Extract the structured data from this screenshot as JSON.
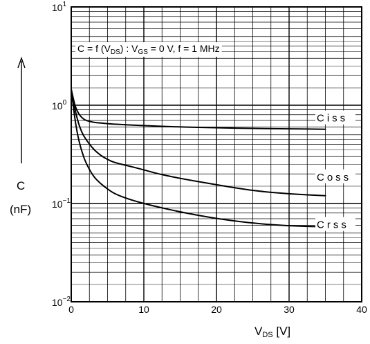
{
  "chart_data": {
    "type": "line",
    "title": "",
    "annotation": "C = f (V_DS) : V_GS = 0 V,  f = 1 MHz",
    "xlabel": "V_DS [V]",
    "ylabel": "C",
    "ylabel_unit": "(nF)",
    "x_scale": "linear",
    "y_scale": "log",
    "xlim": [
      0,
      40
    ],
    "ylim": [
      0.01,
      10
    ],
    "grid": true,
    "x_ticks": [
      {
        "value": 0,
        "label": "0"
      },
      {
        "value": 10,
        "label": "10"
      },
      {
        "value": 20,
        "label": "20"
      },
      {
        "value": 30,
        "label": "30"
      },
      {
        "value": 40,
        "label": "40"
      }
    ],
    "y_ticks": [
      {
        "value": 0.01,
        "base": "10",
        "exp": "−2"
      },
      {
        "value": 0.1,
        "base": "10",
        "exp": "−1"
      },
      {
        "value": 1,
        "base": "10",
        "exp": "0"
      },
      {
        "value": 10,
        "base": "10",
        "exp": "1"
      }
    ],
    "series": [
      {
        "name": "Ciss",
        "x": [
          0,
          0.3,
          0.6,
          1,
          1.5,
          2,
          3,
          4,
          6,
          10,
          15,
          20,
          25,
          30,
          35
        ],
        "y": [
          1.45,
          1.15,
          0.95,
          0.82,
          0.74,
          0.7,
          0.67,
          0.66,
          0.64,
          0.62,
          0.6,
          0.59,
          0.58,
          0.575,
          0.57
        ]
      },
      {
        "name": "Coss",
        "x": [
          0,
          0.3,
          0.6,
          1,
          1.5,
          2,
          3,
          4,
          5,
          6,
          8,
          10,
          12,
          15,
          20,
          25,
          30,
          35
        ],
        "y": [
          1.45,
          1.1,
          0.85,
          0.65,
          0.52,
          0.45,
          0.36,
          0.31,
          0.28,
          0.26,
          0.24,
          0.22,
          0.2,
          0.18,
          0.155,
          0.135,
          0.125,
          0.12
        ]
      },
      {
        "name": "Crss",
        "x": [
          0,
          0.3,
          0.6,
          1,
          1.5,
          2,
          3,
          4,
          5,
          6,
          8,
          10,
          12,
          15,
          20,
          25,
          30,
          35
        ],
        "y": [
          1.45,
          0.95,
          0.65,
          0.45,
          0.33,
          0.26,
          0.19,
          0.16,
          0.14,
          0.125,
          0.11,
          0.1,
          0.092,
          0.082,
          0.07,
          0.063,
          0.059,
          0.058
        ]
      }
    ]
  }
}
